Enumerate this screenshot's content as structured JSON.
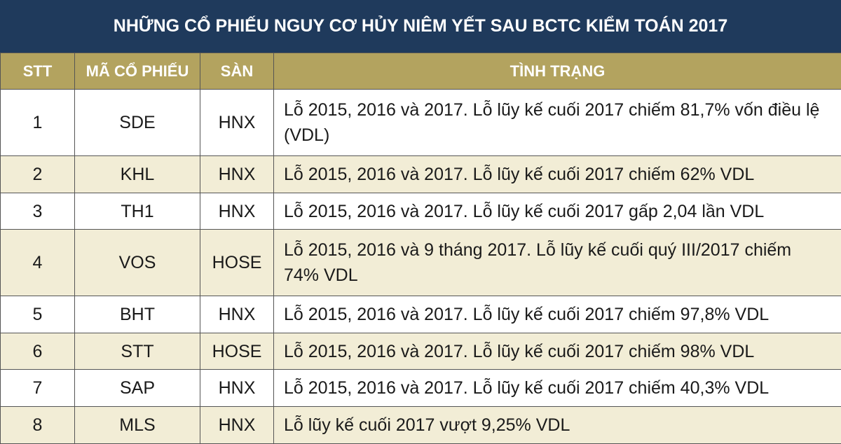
{
  "header": {
    "title": "NHỮNG CỔ PHIẾU NGUY CƠ HỦY NIÊM YẾT SAU BCTC KIỂM TOÁN 2017"
  },
  "table": {
    "columns": [
      "STT",
      "MÃ CỔ PHIẾU",
      "SÀN",
      "TÌNH TRẠNG"
    ],
    "rows": [
      [
        1,
        "SDE",
        "HNX",
        "Lỗ 2015, 2016 và 2017. Lỗ lũy kế cuối 2017 chiếm 81,7% vốn điều lệ (VDL)"
      ],
      [
        2,
        "KHL",
        "HNX",
        "Lỗ 2015, 2016 và 2017. Lỗ lũy kế cuối 2017 chiếm 62% VDL"
      ],
      [
        3,
        "TH1",
        "HNX",
        "Lỗ 2015, 2016 và 2017. Lỗ lũy kế cuối 2017 gấp 2,04 lần VDL"
      ],
      [
        4,
        "VOS",
        "HOSE",
        "Lỗ 2015, 2016 và 9 tháng 2017. Lỗ lũy kế cuối quý III/2017 chiếm 74% VDL"
      ],
      [
        5,
        "BHT",
        "HNX",
        "Lỗ 2015, 2016 và 2017. Lỗ lũy kế cuối 2017 chiếm 97,8% VDL"
      ],
      [
        6,
        "STT",
        "HOSE",
        "Lỗ 2015, 2016 và 2017. Lỗ lũy kế cuối 2017 chiếm 98% VDL"
      ],
      [
        7,
        "SAP",
        "HNX",
        "Lỗ 2015, 2016 và 2017. Lỗ lũy kế cuối 2017 chiếm 40,3% VDL"
      ],
      [
        8,
        "MLS",
        "HNX",
        "Lỗ lũy kế cuối 2017 vượt 9,25% VDL"
      ]
    ]
  }
}
